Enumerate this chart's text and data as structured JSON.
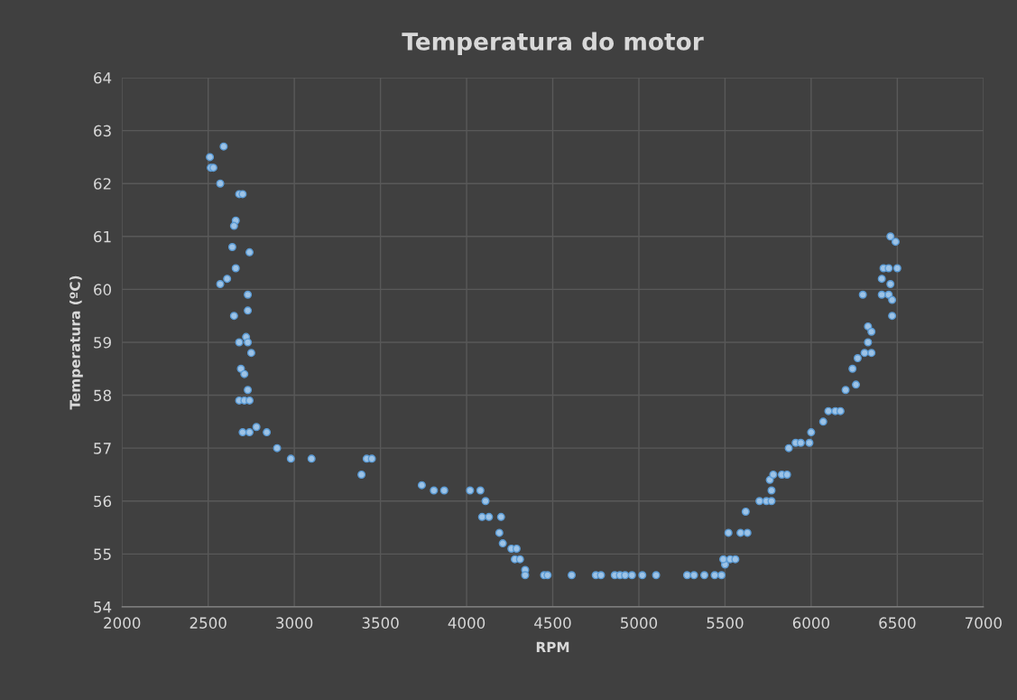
{
  "chart_data": {
    "type": "scatter",
    "title": "Temperatura do motor",
    "xlabel": "RPM",
    "ylabel": "Temperatura (ºC)",
    "xlim": [
      2000,
      7000
    ],
    "xticks": [
      2000,
      2500,
      3000,
      3500,
      4000,
      4500,
      5000,
      5500,
      6000,
      6500,
      7000
    ],
    "ylim": [
      54,
      64
    ],
    "yticks": [
      54,
      55,
      56,
      57,
      58,
      59,
      60,
      61,
      62,
      63,
      64
    ],
    "grid": true,
    "marker": "circle",
    "legend": false,
    "series": [
      {
        "color": "#9dc3e6",
        "x": [
          2510,
          2515,
          2530,
          2590,
          2570,
          2680,
          2700,
          2660,
          2650,
          2640,
          2740,
          2660,
          2610,
          2570,
          2730,
          2730,
          2650,
          2720,
          2730,
          2680,
          2750,
          2690,
          2710,
          2730,
          2680,
          2710,
          2740,
          2700,
          2740,
          2780,
          2840,
          2900,
          2980,
          3100,
          3390,
          3420,
          3450,
          3740,
          3810,
          3870,
          4020,
          4080,
          4110,
          4090,
          4130,
          4200,
          4190,
          4210,
          4260,
          4290,
          4280,
          4310,
          4340,
          4340,
          4450,
          4470,
          4610,
          4750,
          4780,
          4860,
          4890,
          4920,
          4960,
          5020,
          5100,
          5280,
          5320,
          5380,
          5440,
          5480,
          5500,
          5490,
          5530,
          5560,
          5520,
          5590,
          5630,
          5620,
          5700,
          5740,
          5770,
          5770,
          5760,
          5780,
          5830,
          5860,
          5870,
          5910,
          5940,
          5990,
          6000,
          6070,
          6100,
          6140,
          6170,
          6200,
          6240,
          6260,
          6270,
          6310,
          6350,
          6330,
          6330,
          6350,
          6300,
          6410,
          6450,
          6470,
          6460,
          6470,
          6410,
          6420,
          6450,
          6500,
          6460,
          6490
        ],
        "values": [
          62.5,
          62.3,
          62.3,
          62.7,
          62.0,
          61.8,
          61.8,
          61.3,
          61.2,
          60.8,
          60.7,
          60.4,
          60.2,
          60.1,
          59.9,
          59.6,
          59.5,
          59.1,
          59.0,
          59.0,
          58.8,
          58.5,
          58.4,
          58.1,
          57.9,
          57.9,
          57.9,
          57.3,
          57.3,
          57.4,
          57.3,
          57.0,
          56.8,
          56.8,
          56.5,
          56.8,
          56.8,
          56.3,
          56.2,
          56.2,
          56.2,
          56.2,
          56.0,
          55.7,
          55.7,
          55.7,
          55.4,
          55.2,
          55.1,
          55.1,
          54.9,
          54.9,
          54.7,
          54.6,
          54.6,
          54.6,
          54.6,
          54.6,
          54.6,
          54.6,
          54.6,
          54.6,
          54.6,
          54.6,
          54.6,
          54.6,
          54.6,
          54.6,
          54.6,
          54.6,
          54.8,
          54.9,
          54.9,
          54.9,
          55.4,
          55.4,
          55.4,
          55.8,
          56.0,
          56.0,
          56.0,
          56.2,
          56.4,
          56.5,
          56.5,
          56.5,
          57.0,
          57.1,
          57.1,
          57.1,
          57.3,
          57.5,
          57.7,
          57.7,
          57.7,
          58.1,
          58.5,
          58.2,
          58.7,
          58.8,
          58.8,
          59.0,
          59.3,
          59.2,
          59.9,
          59.9,
          59.9,
          59.8,
          60.1,
          59.5,
          60.2,
          60.4,
          60.4,
          60.4,
          61.0,
          60.9
        ]
      }
    ]
  }
}
